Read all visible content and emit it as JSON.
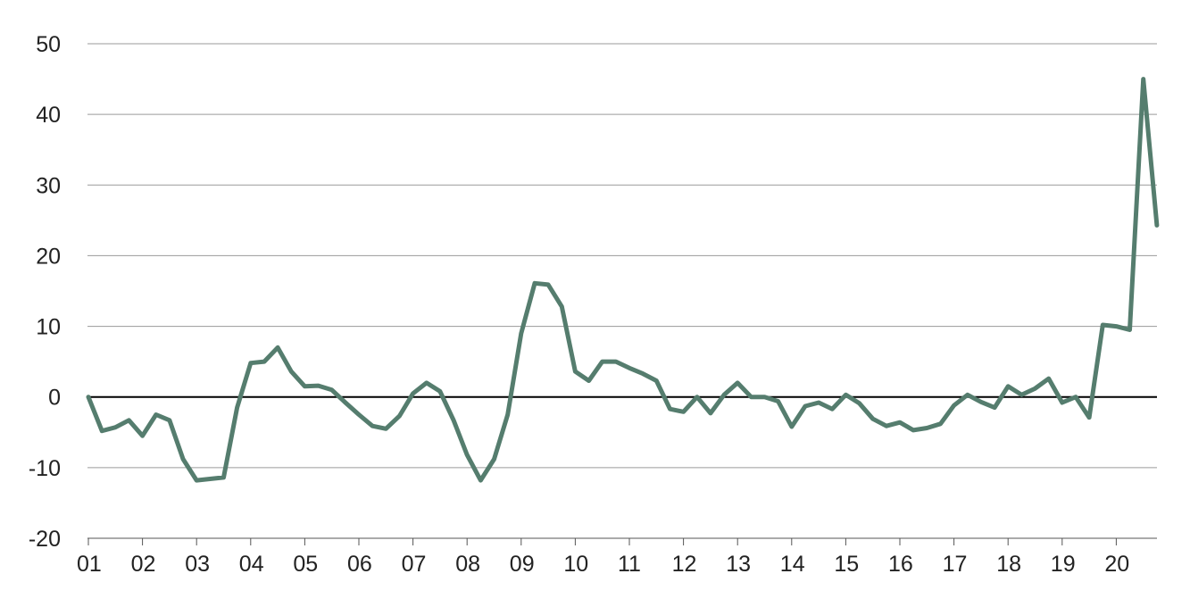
{
  "chart_data": {
    "type": "line",
    "title": "",
    "xlabel": "",
    "ylabel": "",
    "ylim": [
      -20,
      50
    ],
    "yticks": [
      -20,
      -10,
      0,
      10,
      20,
      30,
      40,
      50
    ],
    "ytick_labels": [
      "-20",
      "-10",
      "0",
      "10",
      "20",
      "30",
      "40",
      "50"
    ],
    "xtick_labels": [
      "01",
      "02",
      "03",
      "04",
      "05",
      "06",
      "07",
      "08",
      "09",
      "10",
      "11",
      "12",
      "13",
      "14",
      "15",
      "16",
      "17",
      "18",
      "19",
      "20"
    ],
    "grid": true,
    "legend": "none",
    "colors": {
      "line": "#557d6e",
      "grid": "#9a9a9a",
      "zero_line": "#000000",
      "axis": "#555555"
    },
    "series": [
      {
        "x_start_year": 2001,
        "points_per_year": 4,
        "values": [
          0,
          -4.8,
          -4.3,
          -3.3,
          -5.5,
          -2.5,
          -3.3,
          -8.8,
          -11.8,
          -11.6,
          -11.4,
          -1.5,
          4.8,
          5.0,
          7.0,
          3.6,
          1.5,
          1.6,
          1.0,
          -0.8,
          -2.5,
          -4.1,
          -4.5,
          -2.7,
          0.5,
          2.0,
          0.8,
          -3.3,
          -8.2,
          -11.8,
          -8.8,
          -2.5,
          9.0,
          16.1,
          15.9,
          12.8,
          3.6,
          2.3,
          5.0,
          5.0,
          4.1,
          3.3,
          2.3,
          -1.7,
          -2.1,
          0,
          -2.3,
          0.3,
          2.0,
          0,
          0,
          -0.6,
          -4.2,
          -1.3,
          -0.8,
          -1.7,
          0.3,
          -0.9,
          -3.1,
          -4.1,
          -3.6,
          -4.7,
          -4.4,
          -3.8,
          -1.2,
          0.3,
          -0.7,
          -1.5,
          1.5,
          0.3,
          1.2,
          2.6,
          -0.8,
          0,
          -2.9,
          10.2,
          10.0,
          9.5,
          45.0,
          24.3
        ]
      }
    ]
  }
}
